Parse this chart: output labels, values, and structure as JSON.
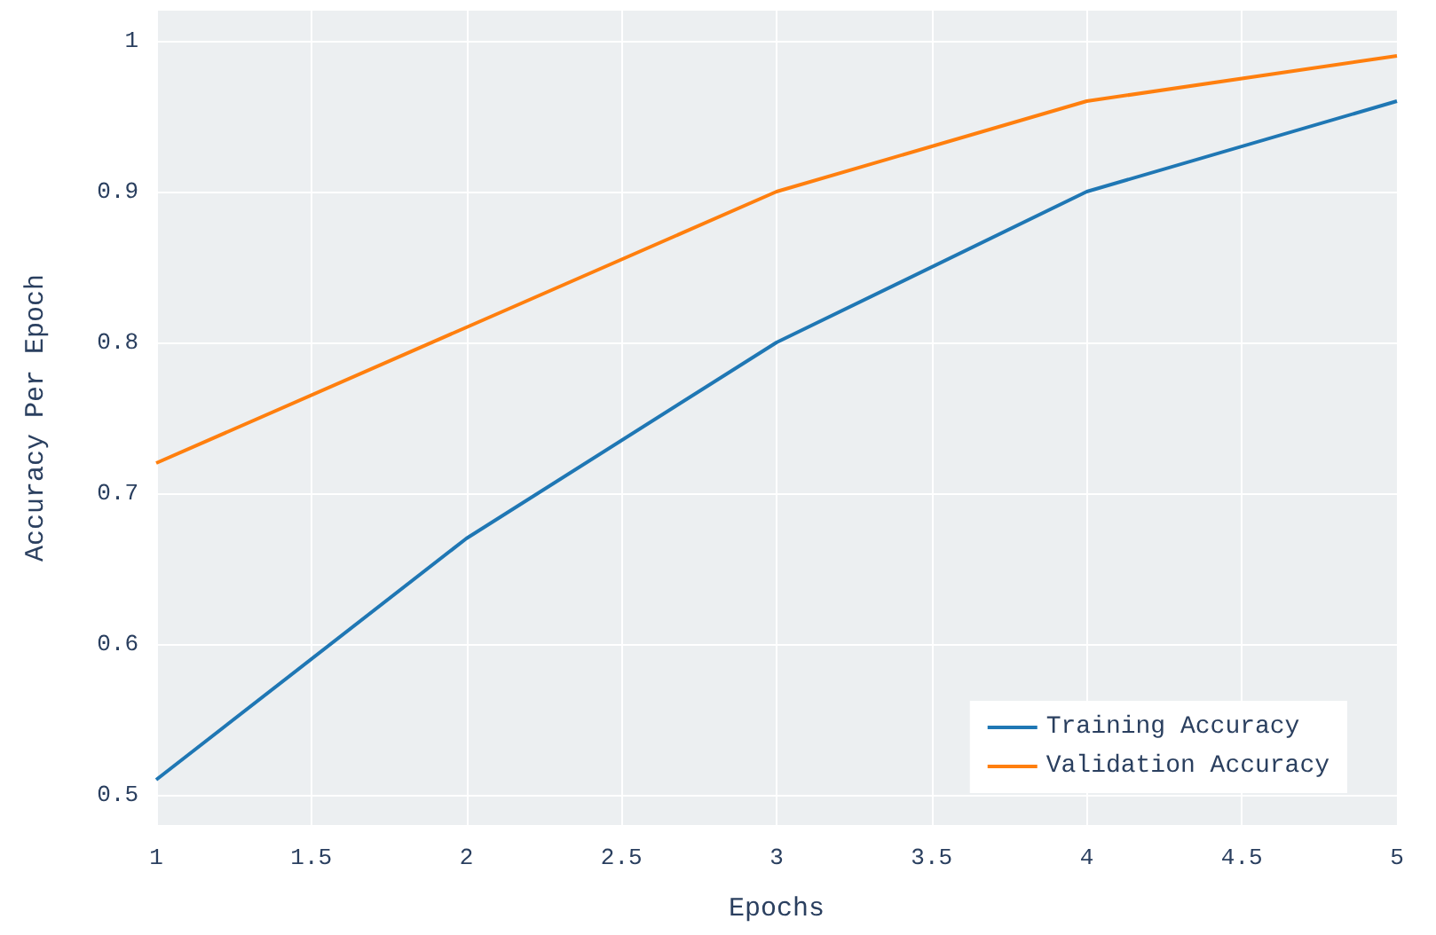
{
  "chart_data": {
    "type": "line",
    "xlabel": "Epochs",
    "ylabel": "Accuracy Per Epoch",
    "x": [
      1,
      2,
      3,
      4,
      5
    ],
    "series": [
      {
        "name": "Training Accuracy",
        "color": "#1f77b4",
        "values": [
          0.51,
          0.67,
          0.8,
          0.9,
          0.96
        ]
      },
      {
        "name": "Validation Accuracy",
        "color": "#ff7f0e",
        "values": [
          0.72,
          0.81,
          0.9,
          0.96,
          0.99
        ]
      }
    ],
    "xlim": [
      1,
      5
    ],
    "xticks": [
      1,
      1.5,
      2,
      2.5,
      3,
      3.5,
      4,
      4.5,
      5
    ],
    "ylim": [
      0.48,
      1.02
    ],
    "yticks": [
      0.5,
      0.6,
      0.7,
      0.8,
      0.9,
      1
    ],
    "grid": true,
    "legend": "bottom right",
    "marker": "none",
    "line_style": "solid"
  }
}
